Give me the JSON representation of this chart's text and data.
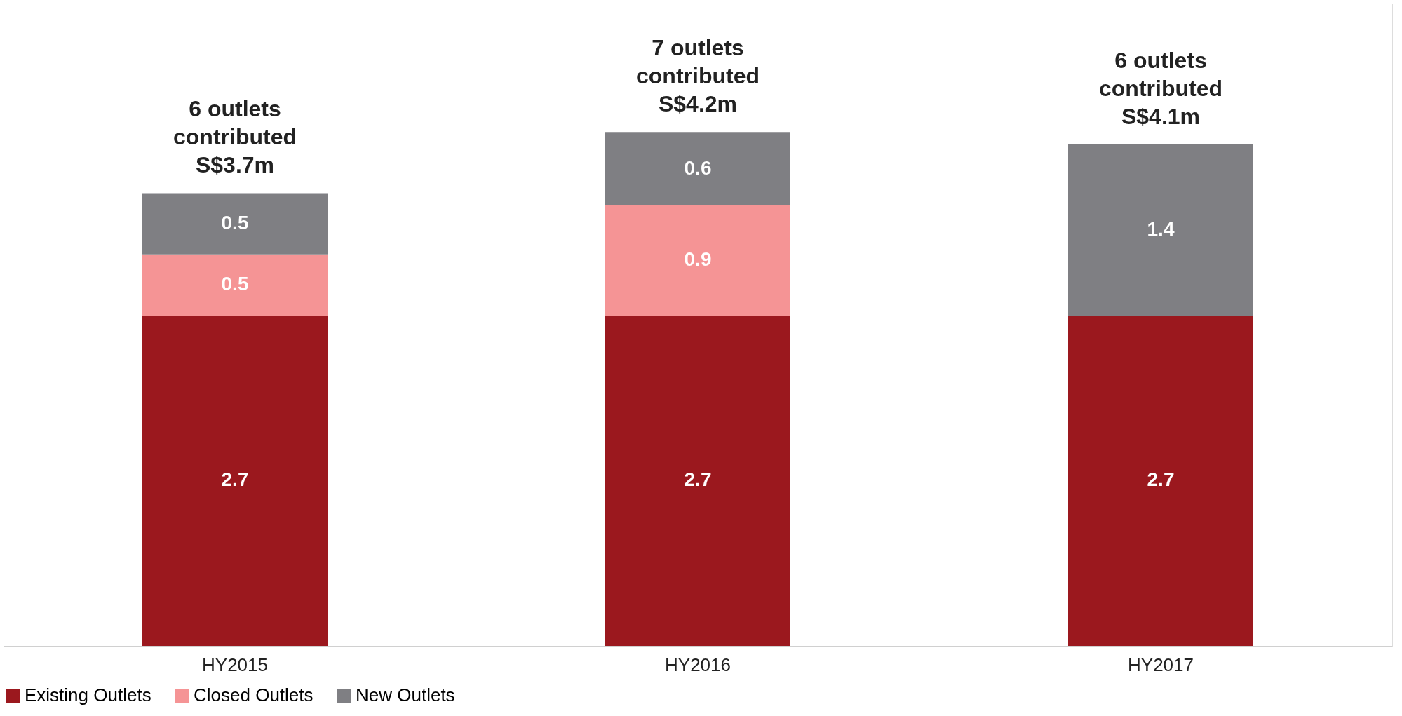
{
  "chart_data": {
    "type": "bar",
    "stacked": true,
    "data_labels": true,
    "legend": "bottom",
    "grid": false,
    "categories": [
      "HY2015",
      "HY2016",
      "HY2017"
    ],
    "series": [
      {
        "name": "Existing Outlets",
        "color": "#9b181e",
        "values": [
          2.7,
          2.7,
          2.7
        ]
      },
      {
        "name": "Closed Outlets",
        "color": "#f59495",
        "values": [
          0.5,
          0.9,
          null
        ]
      },
      {
        "name": "New Outlets",
        "color": "#7f7f83",
        "values": [
          0.5,
          0.6,
          1.4
        ]
      }
    ],
    "totals": [
      "6 outlets\ncontributed\nS$3.7m",
      "7 outlets\ncontributed\nS$4.2m",
      "6 outlets\ncontributed\nS$4.1m"
    ]
  }
}
